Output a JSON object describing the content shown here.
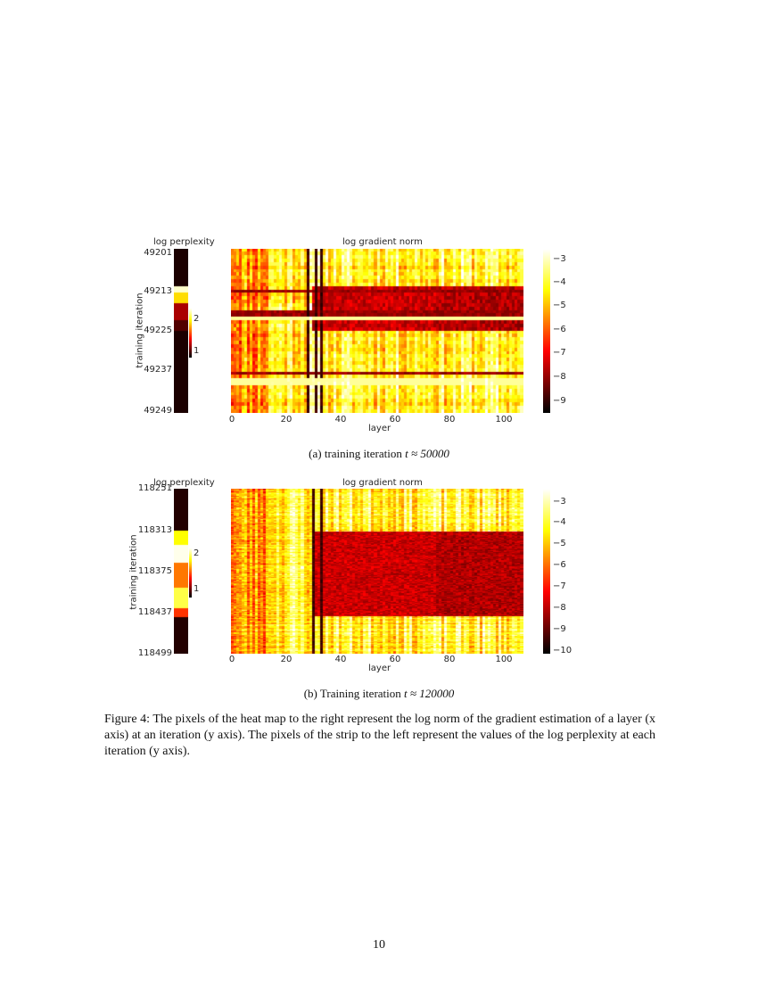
{
  "page": {
    "number": "10"
  },
  "figure": {
    "caption": "Figure 4: The pixels of the heat map to the right represent the log norm of the gradient estimation of a layer (x axis) at an iteration (y axis). The pixels of the strip to the left represent the values of the log perplexity at each iteration (y axis)."
  },
  "panels": [
    {
      "subcaption_prefix": "(a) training iteration ",
      "subcaption_math": "t ≈ 50000",
      "strip_title": "log perplexity",
      "heat_title": "log gradient norm",
      "ylabel": "training iteration",
      "xlabel": "layer",
      "yticks": [
        "49201",
        "49213",
        "49225",
        "49237",
        "49249"
      ],
      "xticks": [
        "0",
        "20",
        "40",
        "60",
        "80",
        "100"
      ],
      "strip_cbar_ticks": [
        "2",
        "1"
      ],
      "heat_cbar_ticks": [
        "−3",
        "−4",
        "−5",
        "−6",
        "−7",
        "−8",
        "−9"
      ]
    },
    {
      "subcaption_prefix": "(b) Training iteration ",
      "subcaption_math": "t ≈ 120000",
      "strip_title": "log perplexity",
      "heat_title": "log gradient norm",
      "ylabel": "training iteration",
      "xlabel": "layer",
      "yticks": [
        "118251",
        "118313",
        "118375",
        "118437",
        "118499"
      ],
      "xticks": [
        "0",
        "20",
        "40",
        "60",
        "80",
        "100"
      ],
      "strip_cbar_ticks": [
        "2",
        "1"
      ],
      "heat_cbar_ticks": [
        "−3",
        "−4",
        "−5",
        "−6",
        "−7",
        "−8",
        "−9",
        "−10"
      ]
    }
  ],
  "chart_data": [
    {
      "type": "heatmap",
      "title": "log gradient norm",
      "xlabel": "layer",
      "ylabel": "training iteration",
      "x_range": [
        0,
        107
      ],
      "y_range": [
        49201,
        49249
      ],
      "colormap": "hot",
      "color_range": [
        -9.5,
        -2.5
      ],
      "strip": {
        "title": "log perplexity",
        "range": [
          0.8,
          2.6
        ],
        "rows_high_near": [
          49213,
          49215
        ],
        "rows_low_near": [
          49219,
          49225
        ]
      },
      "features": {
        "dark_rows_approx": [
          49213,
          49217,
          49222,
          49237
        ],
        "dark_columns_approx": [
          28,
          31,
          33
        ],
        "dark_block": {
          "layers": [
            30,
            107
          ],
          "iterations": [
            49211,
            49224
          ]
        }
      }
    },
    {
      "type": "heatmap",
      "title": "log gradient norm",
      "xlabel": "layer",
      "ylabel": "training iteration",
      "x_range": [
        0,
        107
      ],
      "y_range": [
        118251,
        118499
      ],
      "colormap": "hot",
      "color_range": [
        -10.5,
        -2.5
      ],
      "strip": {
        "title": "log perplexity",
        "range": [
          0.8,
          2.6
        ],
        "rows_high_near": [
          118313,
          118437
        ],
        "rows_low_near": [
          118251,
          118499
        ]
      },
      "features": {
        "dark_columns_approx": [
          30,
          33
        ],
        "dark_block": {
          "layers": [
            30,
            107
          ],
          "iterations": [
            118313,
            118437
          ]
        }
      }
    }
  ]
}
